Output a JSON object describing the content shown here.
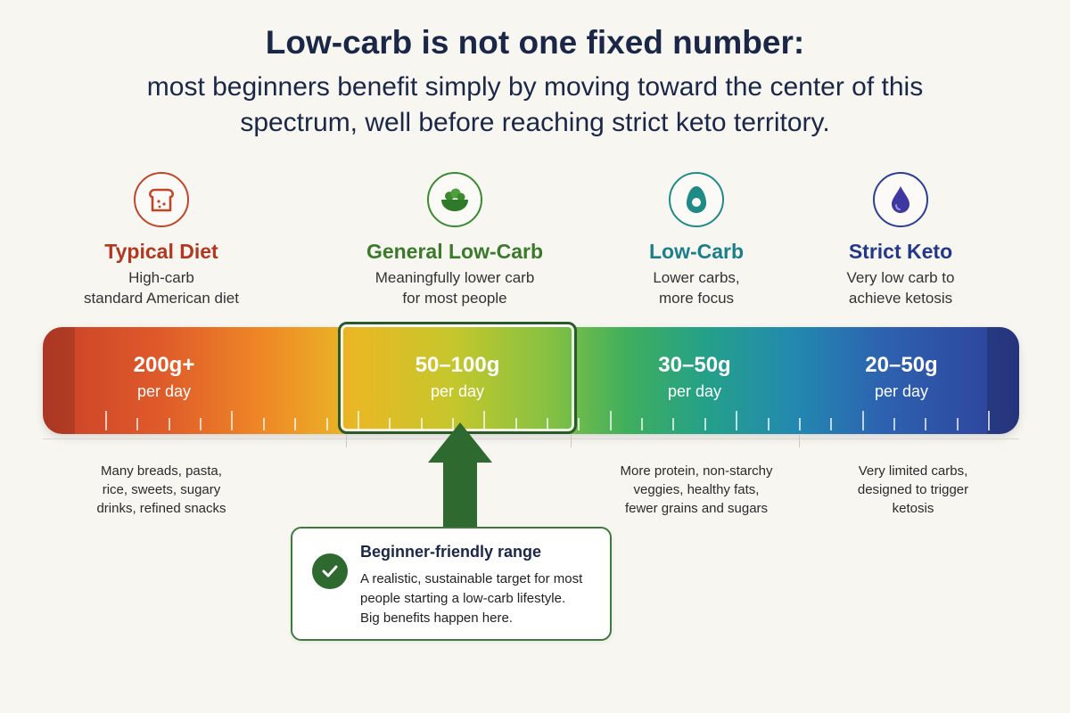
{
  "header": {
    "title": "Low-carb is not one fixed number:",
    "subtitle": "most beginners benefit simply by moving toward the center of this spectrum, well before reaching strict keto territory."
  },
  "categories": [
    {
      "name": "Typical Diet",
      "desc_line1": "High-carb",
      "desc_line2": "standard American diet",
      "icon": "bread-icon",
      "color": "#c0462a"
    },
    {
      "name": "General Low-Carb",
      "desc_line1": "Meaningfully lower carb",
      "desc_line2": "for most people",
      "icon": "salad-bowl-icon",
      "color": "#3a8a2e"
    },
    {
      "name": "Low-Carb",
      "desc_line1": "Lower carbs,",
      "desc_line2": "more focus",
      "icon": "avocado-icon",
      "color": "#1f8a86"
    },
    {
      "name": "Strict Keto",
      "desc_line1": "Very low carb to",
      "desc_line2": "achieve ketosis",
      "icon": "droplet-icon",
      "color": "#2b3f96"
    }
  ],
  "ranges": [
    {
      "amount": "200g+",
      "unit": "per day"
    },
    {
      "amount": "50–100g",
      "unit": "per day"
    },
    {
      "amount": "30–50g",
      "unit": "per day"
    },
    {
      "amount": "20–50g",
      "unit": "per day"
    }
  ],
  "notes": [
    {
      "line1": "Many breads, pasta,",
      "line2": "rice, sweets, sugary",
      "line3": "drinks, refined snacks"
    },
    {
      "line1": "More protein, non-starchy",
      "line2": "veggies, healthy fats,",
      "line3": "fewer grains and sugars"
    },
    {
      "line1": "Very limited carbs,",
      "line2": "designed to trigger",
      "line3": "ketosis"
    }
  ],
  "callout": {
    "title": "Beginner-friendly range",
    "line1": "A realistic, sustainable target for most",
    "line2": "people starting a low-carb lifestyle.",
    "line3": "Big benefits happen here.",
    "icon": "checkmark-icon",
    "color": "#2e6a30"
  }
}
